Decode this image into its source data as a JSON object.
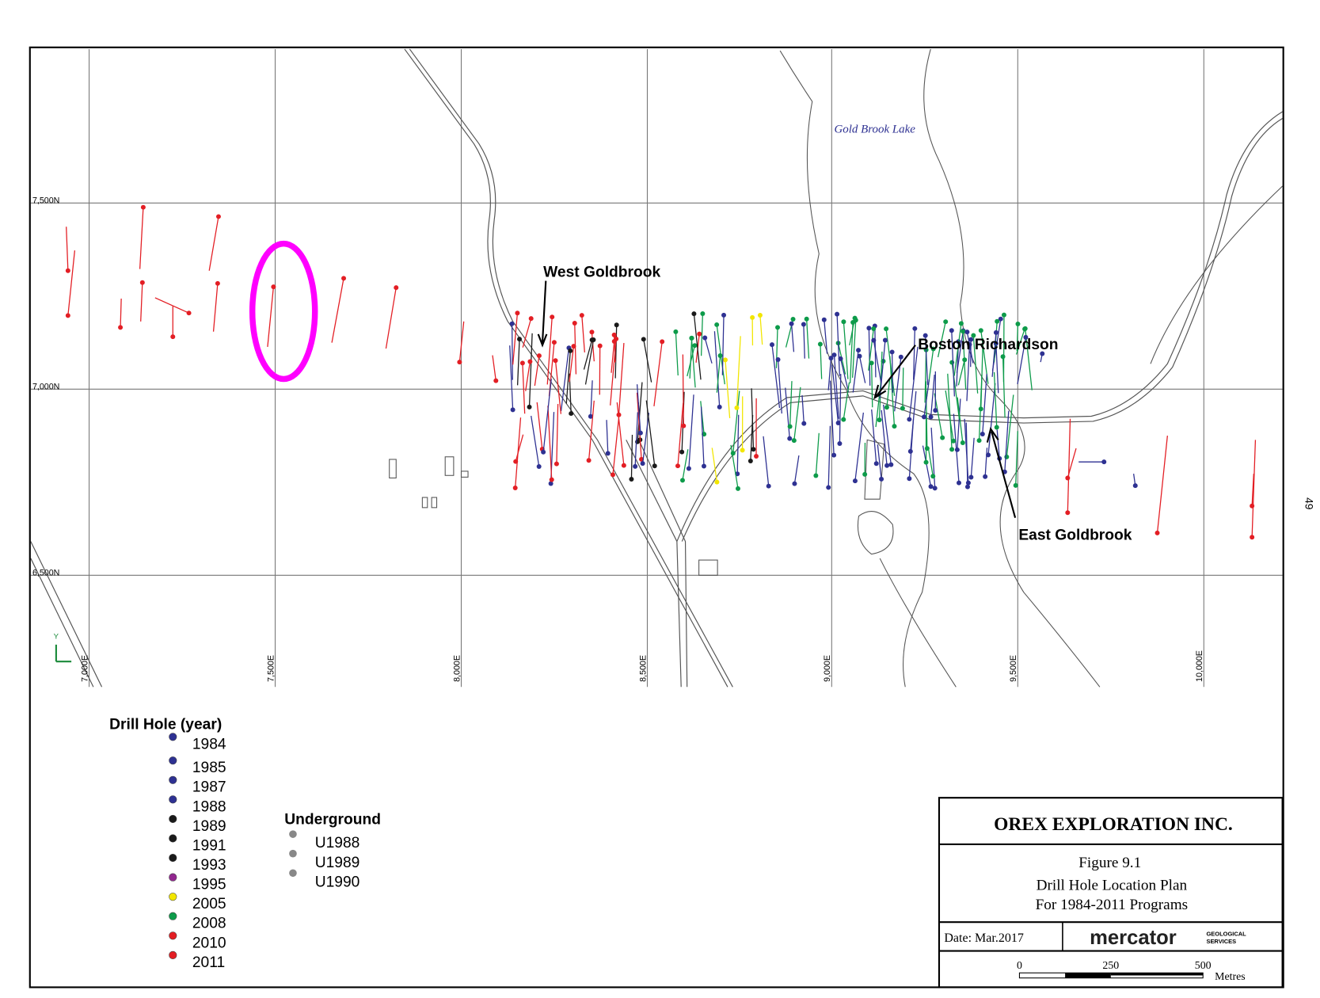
{
  "map": {
    "northing_labels": [
      "7,500N",
      "7,000N",
      "6,500N"
    ],
    "easting_labels": [
      "7,000E",
      "7,500E",
      "8,000E",
      "8,500E",
      "9,000E",
      "9,500E",
      "10,000E"
    ],
    "lake_label": "Gold Brook Lake",
    "place_labels": [
      "West Goldbrook",
      "Boston Richardson",
      "East Goldbrook"
    ],
    "axis_icon_label": "Y",
    "page_number": "49"
  },
  "legend": {
    "title": "Drill Hole (year)",
    "items": [
      {
        "label": "1984",
        "color": "#2e3192"
      },
      {
        "label": "1985",
        "color": "#2e3192"
      },
      {
        "label": "1987",
        "color": "#2e3192"
      },
      {
        "label": "1988",
        "color": "#2e3192"
      },
      {
        "label": "1989",
        "color": "#1a1a1a"
      },
      {
        "label": "1991",
        "color": "#1a1a1a"
      },
      {
        "label": "1993",
        "color": "#1a1a1a"
      },
      {
        "label": "1995",
        "color": "#92278f"
      },
      {
        "label": "2005",
        "color": "#f2e600"
      },
      {
        "label": "2008",
        "color": "#0d9b4a"
      },
      {
        "label": "2010",
        "color": "#e31e24"
      },
      {
        "label": "2011",
        "color": "#e31e24"
      }
    ]
  },
  "underground": {
    "title": "Underground",
    "color": "#888888",
    "items": [
      "U1988",
      "U1989",
      "U1990"
    ]
  },
  "title_block": {
    "company": "OREX EXPLORATION INC.",
    "figure": "Figure 9.1",
    "caption_lines": [
      "Drill Hole Location Plan",
      "For 1984-2011 Programs"
    ],
    "date": "Date: Mar.2017",
    "logo": "mercator",
    "logo_sub": [
      "GEOLOGICAL",
      "SERVICES"
    ],
    "scale_labels": [
      "0",
      "250",
      "500"
    ],
    "scale_unit": "Metres"
  }
}
